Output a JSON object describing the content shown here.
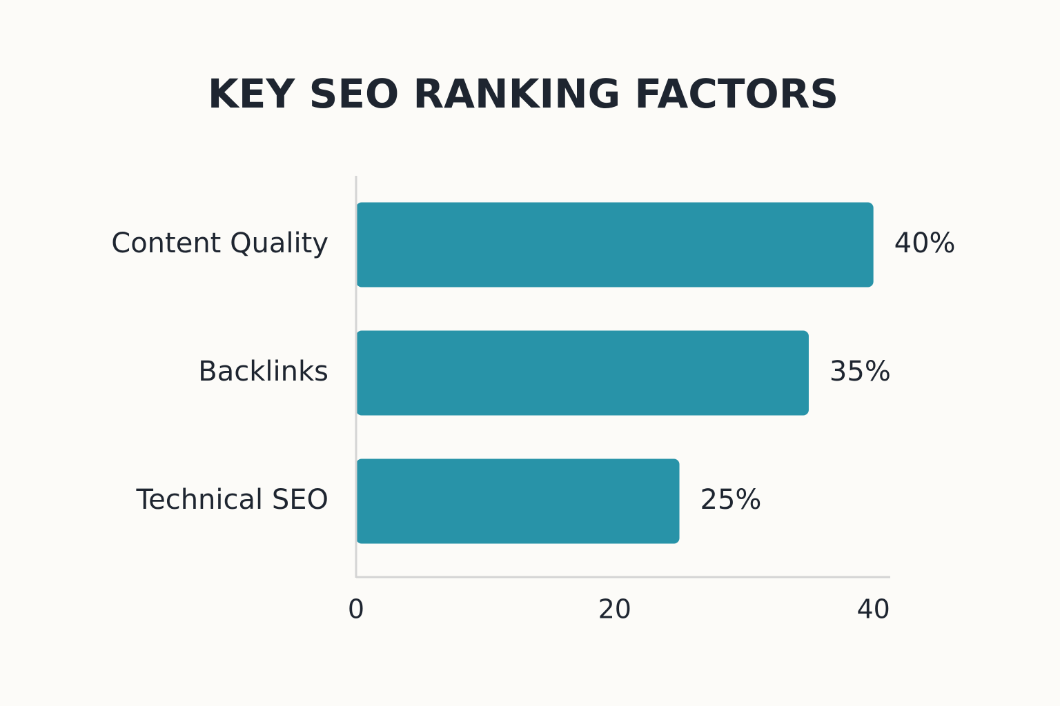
{
  "chart_data": {
    "type": "bar",
    "orientation": "horizontal",
    "title": "KEY SEO RANKING FACTORS",
    "categories": [
      "Content Quality",
      "Backlinks",
      "Technical SEO"
    ],
    "values": [
      40,
      35,
      25
    ],
    "value_labels": [
      "40%",
      "35%",
      "25%"
    ],
    "color": "#2893a8",
    "xlim": [
      0,
      41.3
    ],
    "xticks": [
      0,
      20,
      40
    ],
    "grid": false
  }
}
